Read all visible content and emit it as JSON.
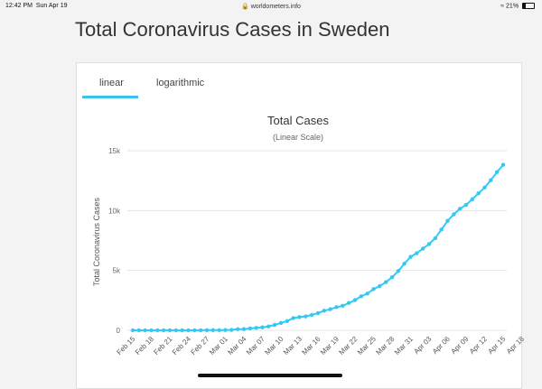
{
  "status_bar": {
    "time": "12:42 PM",
    "date": "Sun Apr 19",
    "url": "worldometers.info",
    "battery": "21%"
  },
  "page": {
    "title": "Total Coronavirus Cases in Sweden"
  },
  "tabs": [
    {
      "label": "linear",
      "active": true
    },
    {
      "label": "logarithmic",
      "active": false
    }
  ],
  "colors": {
    "accent": "#39c2ef",
    "line": "#34c8f5"
  },
  "chart_data": {
    "type": "line",
    "title": "Total Cases",
    "subtitle": "(Linear Scale)",
    "ylabel": "Total Coronavirus Cases",
    "xlabel": "",
    "ylim": [
      0,
      15000
    ],
    "y_ticks": [
      0,
      5000,
      10000,
      15000
    ],
    "y_tick_labels": [
      "0",
      "5k",
      "10k",
      "15k"
    ],
    "x_tick_labels": [
      "Feb 15",
      "Feb 18",
      "Feb 21",
      "Feb 24",
      "Feb 27",
      "Mar 01",
      "Mar 04",
      "Mar 07",
      "Mar 10",
      "Mar 13",
      "Mar 16",
      "Mar 19",
      "Mar 22",
      "Mar 25",
      "Mar 28",
      "Mar 31",
      "Apr 03",
      "Apr 06",
      "Apr 09",
      "Apr 12",
      "Apr 15",
      "Apr 18"
    ],
    "series": [
      {
        "name": "Cases",
        "x_start": "Feb 15",
        "values": [
          1,
          1,
          1,
          1,
          1,
          1,
          1,
          1,
          1,
          1,
          2,
          7,
          12,
          14,
          15,
          21,
          35,
          94,
          101,
          161,
          203,
          248,
          326,
          461,
          620,
          771,
          1022,
          1103,
          1167,
          1290,
          1439,
          1639,
          1763,
          1934,
          2046,
          2286,
          2526,
          2840,
          3069,
          3447,
          3700,
          4028,
          4435,
          4947,
          5568,
          6131,
          6443,
          6830,
          7206,
          7693,
          8419,
          9141,
          9685,
          10151,
          10483,
          10948,
          11445,
          11927,
          12540,
          13216,
          13822
        ]
      }
    ]
  }
}
